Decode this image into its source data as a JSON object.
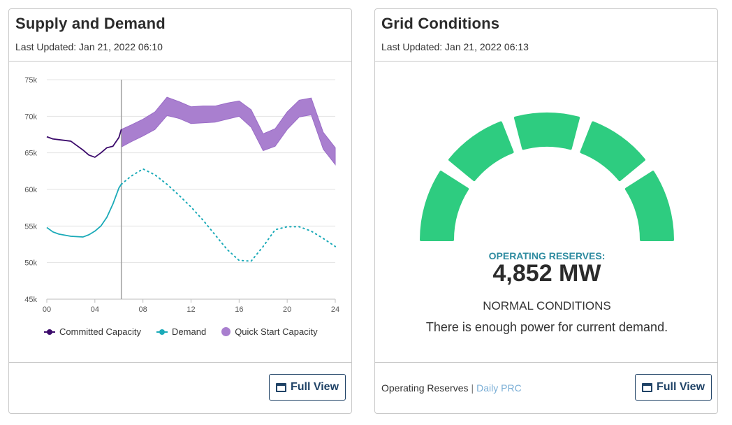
{
  "supply_demand": {
    "title": "Supply and Demand",
    "updated": "Last Updated: Jan 21, 2022 06:10",
    "full_view_label": "Full View",
    "legend": {
      "committed": "Committed Capacity",
      "demand": "Demand",
      "quick_start": "Quick Start Capacity"
    }
  },
  "grid_conditions": {
    "title": "Grid Conditions",
    "updated": "Last Updated: Jan 21, 2022 06:13",
    "reserves_label": "OPERATING RESERVES:",
    "reserves_value": "4,852 MW",
    "status": "NORMAL CONDITIONS",
    "description": "There is enough power for current demand.",
    "footer_text": "Operating Reserves",
    "footer_link": "Daily PRC",
    "full_view_label": "Full View",
    "gauge_segments": 5,
    "gauge_color": "#2ecc80"
  },
  "colors": {
    "committed": "#3b0a6b",
    "demand": "#1aaab8",
    "quick_start": "#a97fcf",
    "title": "#2b2b2b",
    "button": "#1f4266"
  },
  "chart_data": {
    "type": "line",
    "title": "",
    "xlabel": "",
    "ylabel": "",
    "x_ticks": [
      "00",
      "04",
      "08",
      "12",
      "16",
      "20",
      "24"
    ],
    "y_ticks": [
      "45k",
      "50k",
      "55k",
      "60k",
      "65k",
      "70k",
      "75k"
    ],
    "xlim": [
      0,
      24
    ],
    "ylim": [
      45000,
      75000
    ],
    "current_time": 6.2,
    "grid": true,
    "legend_position": "bottom",
    "series": [
      {
        "name": "Committed Capacity",
        "style": "solid-line",
        "x": [
          0,
          0.5,
          1,
          2,
          3,
          3.5,
          4,
          4.5,
          5,
          5.5,
          6,
          6.2
        ],
        "y": [
          67200,
          66900,
          66800,
          66600,
          65400,
          64700,
          64400,
          65000,
          65700,
          65900,
          67100,
          68200
        ]
      },
      {
        "name": "Demand",
        "style": "solid-line",
        "x": [
          0,
          0.5,
          1,
          2,
          3,
          3.5,
          4,
          4.5,
          5,
          5.5,
          6,
          6.2
        ],
        "y": [
          54800,
          54200,
          53900,
          53600,
          53500,
          53800,
          54300,
          55000,
          56200,
          58000,
          60200,
          60700
        ]
      },
      {
        "name": "Demand",
        "style": "dotted-forecast",
        "x": [
          6.2,
          7,
          8,
          9,
          10,
          11,
          12,
          13,
          14,
          15,
          16,
          17,
          18,
          19,
          20,
          21,
          22,
          23,
          24
        ],
        "y": [
          60700,
          61800,
          62800,
          62000,
          60700,
          59200,
          57600,
          55800,
          53800,
          51800,
          50300,
          50200,
          52200,
          54500,
          54900,
          54900,
          54300,
          53300,
          52200
        ]
      },
      {
        "name": "Quick Start Capacity",
        "style": "band",
        "x": [
          6.2,
          7,
          8,
          9,
          10,
          11,
          12,
          13,
          14,
          15,
          16,
          17,
          18,
          19,
          20,
          21,
          22,
          23,
          24
        ],
        "low": [
          65800,
          66500,
          67300,
          68200,
          70100,
          69700,
          69000,
          69100,
          69200,
          69600,
          70000,
          68500,
          65300,
          65900,
          68200,
          69900,
          70200,
          65500,
          63400
        ],
        "high": [
          68200,
          68800,
          69600,
          70600,
          72600,
          72000,
          71300,
          71400,
          71400,
          71800,
          72100,
          70900,
          67600,
          68300,
          70600,
          72200,
          72500,
          67800,
          65700
        ]
      }
    ]
  }
}
